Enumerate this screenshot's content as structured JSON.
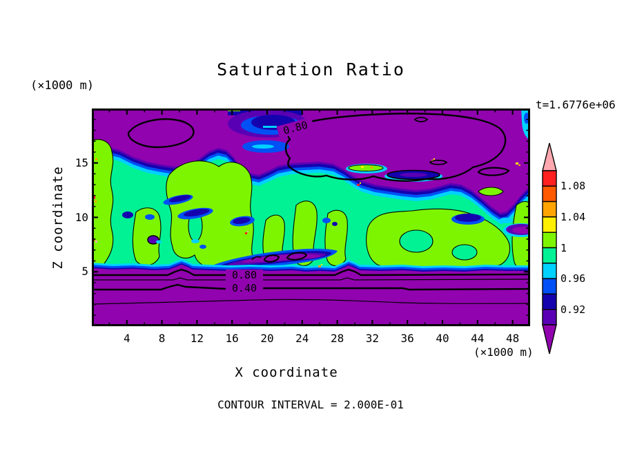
{
  "chart_data": {
    "type": "filled_contour",
    "title": "Saturation Ratio",
    "xlabel": "X coordinate",
    "ylabel": "Z coordinate",
    "time_annotation": "t=1.6776e+06",
    "caption": "CONTOUR INTERVAL = 2.000E-01",
    "contour_interval": 0.2,
    "axes": {
      "x": {
        "unit_label": "(×1000 m)",
        "min": 0,
        "max": 50,
        "major_ticks": [
          4,
          8,
          12,
          16,
          20,
          24,
          28,
          32,
          36,
          40,
          44,
          48
        ],
        "minor_step": 2
      },
      "z": {
        "unit_label": "(×1000 m)",
        "min": 0,
        "max": 20,
        "major_ticks": [
          5,
          10,
          15
        ],
        "minor_step": 1
      }
    },
    "plot_contour_labels": {
      "upper_0_80": "0.80",
      "lower_0_80": "0.80",
      "lower_0_40": "0.40"
    },
    "colorbar": {
      "boundary_labels": [
        {
          "text": "1.08",
          "boundary_index": 1
        },
        {
          "text": "1.04",
          "boundary_index": 3
        },
        {
          "text": "1",
          "boundary_index": 5
        },
        {
          "text": "0.96",
          "boundary_index": 7
        },
        {
          "text": "0.92",
          "boundary_index": 9
        }
      ],
      "segments_top_to_bottom": [
        {
          "range": [
            1.08,
            1.1
          ],
          "color": "#FF2020"
        },
        {
          "range": [
            1.06,
            1.08
          ],
          "color": "#FF5A00"
        },
        {
          "range": [
            1.04,
            1.06
          ],
          "color": "#FFA400"
        },
        {
          "range": [
            1.02,
            1.04
          ],
          "color": "#FFF000"
        },
        {
          "range": [
            1.0,
            1.02
          ],
          "color": "#7DF500"
        },
        {
          "range": [
            0.98,
            1.0
          ],
          "color": "#00F295"
        },
        {
          "range": [
            0.96,
            0.98
          ],
          "color": "#00D2FF"
        },
        {
          "range": [
            0.94,
            0.96
          ],
          "color": "#0050F5"
        },
        {
          "range": [
            0.92,
            0.94
          ],
          "color": "#1402AE"
        },
        {
          "range": [
            0.9,
            0.92
          ],
          "color": "#5A00B4"
        }
      ],
      "above_max_color": "#FFA8B0",
      "below_min_color": "#9103AF"
    },
    "regions_summary": [
      {
        "area": "upper layer z ~ 16-20",
        "value": "subsaturated purple region, 0.80 contour encloses two lobes"
      },
      {
        "area": "middle layer z ~ 5-16",
        "value": "saturation ~0.98-1.02 (green), scattered supersaturated specks"
      },
      {
        "area": "lower layer z ~ 0-5",
        "value": "drops below 0.2 toward surface; 0.80 and 0.40 contours labeled"
      }
    ]
  }
}
